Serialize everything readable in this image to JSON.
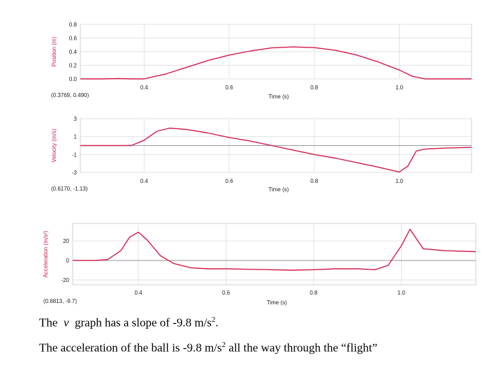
{
  "chart_data": [
    {
      "type": "line",
      "ylabel": "Position (m)",
      "xlabel": "Time (s)",
      "coord_readout": "(0.3769, 0.490)",
      "xlim": [
        0.25,
        1.17
      ],
      "ylim": [
        0.0,
        0.8
      ],
      "yticks": [
        "0.0",
        "0.2",
        "0.4",
        "0.6",
        "0.8"
      ],
      "ytick_values": [
        0.0,
        0.2,
        0.4,
        0.6,
        0.8
      ],
      "xticks": [
        "0.4",
        "0.6",
        "0.8",
        "1.0"
      ],
      "xtick_values": [
        0.4,
        0.6,
        0.8,
        1.0
      ],
      "grid": true,
      "color": "#d11a4a",
      "x": [
        0.25,
        0.3,
        0.34,
        0.37,
        0.4,
        0.42,
        0.45,
        0.5,
        0.55,
        0.6,
        0.65,
        0.7,
        0.75,
        0.8,
        0.85,
        0.9,
        0.95,
        1.0,
        1.03,
        1.06,
        1.1,
        1.17
      ],
      "y": [
        0.0,
        0.0,
        0.005,
        0.0,
        0.0,
        0.03,
        0.07,
        0.17,
        0.27,
        0.35,
        0.41,
        0.455,
        0.47,
        0.46,
        0.42,
        0.35,
        0.25,
        0.13,
        0.04,
        0.0,
        0.0,
        0.0
      ]
    },
    {
      "type": "line",
      "ylabel": "Velocity (m/s)",
      "xlabel": "Time (s)",
      "coord_readout": "(0.6170, -1.13)",
      "xlim": [
        0.25,
        1.17
      ],
      "ylim": [
        -3,
        3
      ],
      "yticks": [
        "3",
        "1",
        "-1",
        "-3"
      ],
      "ytick_values": [
        3,
        1,
        -1,
        -3
      ],
      "xticks": [
        "0.4",
        "0.6",
        "0.8",
        "1.0"
      ],
      "xtick_values": [
        0.4,
        0.6,
        0.8,
        1.0
      ],
      "grid": true,
      "color": "#d11a4a",
      "x": [
        0.25,
        0.3,
        0.34,
        0.37,
        0.4,
        0.43,
        0.46,
        0.5,
        0.55,
        0.6,
        0.65,
        0.7,
        0.75,
        0.8,
        0.85,
        0.9,
        0.95,
        1.0,
        1.02,
        1.04,
        1.06,
        1.1,
        1.17
      ],
      "y": [
        0.0,
        0.0,
        0.0,
        0.0,
        0.6,
        1.6,
        1.95,
        1.8,
        1.4,
        0.9,
        0.5,
        0.0,
        -0.5,
        -1.0,
        -1.4,
        -1.9,
        -2.4,
        -2.95,
        -2.3,
        -0.6,
        -0.4,
        -0.3,
        -0.2
      ]
    },
    {
      "type": "line",
      "ylabel": "Acceleration (m/s²)",
      "xlabel": "Time (s)",
      "coord_readout": "(0.6813, -9.7)",
      "xlim": [
        0.25,
        1.17
      ],
      "ylim": [
        -25,
        38
      ],
      "yticks": [
        "20",
        "0",
        "-20"
      ],
      "ytick_values": [
        20,
        0,
        -20
      ],
      "xticks": [
        "0.4",
        "0.6",
        "0.8",
        "1.0"
      ],
      "xtick_values": [
        0.4,
        0.6,
        0.8,
        1.0
      ],
      "grid": true,
      "color": "#d11a4a",
      "x": [
        0.25,
        0.3,
        0.33,
        0.36,
        0.38,
        0.4,
        0.42,
        0.45,
        0.48,
        0.52,
        0.56,
        0.6,
        0.65,
        0.7,
        0.75,
        0.8,
        0.85,
        0.9,
        0.94,
        0.97,
        1.0,
        1.02,
        1.05,
        1.1,
        1.17
      ],
      "y": [
        0,
        0,
        1,
        10,
        24,
        29,
        21,
        5,
        -3,
        -7.5,
        -8.5,
        -8.5,
        -9,
        -9.5,
        -10,
        -9.5,
        -8.5,
        -8.5,
        -9.5,
        -5,
        15,
        32,
        12,
        10,
        9
      ]
    }
  ],
  "captions": {
    "line1_pre": "The",
    "line1_var": "v",
    "line1_mid": "graph has a slope of -9.8 m/s",
    "line1_exp": "2",
    "line1_end": ".",
    "line2_pre": "The acceleration of the ball is -9.8 m/s",
    "line2_exp": "2",
    "line2_end": " all the way through the “flight”"
  }
}
